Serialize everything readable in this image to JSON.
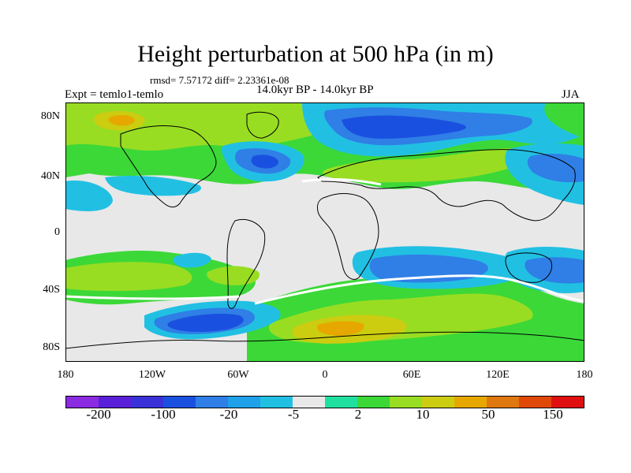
{
  "title": "Height perturbation at 500 hPa (in m)",
  "stats": "rmsd= 7.57172 diff= 2.23361e-08",
  "expt": "Expt = temlo1-temlo",
  "period": "14.0kyr BP - 14.0kyr BP",
  "season": "JJA",
  "y_labels": [
    "80N",
    "40N",
    "0",
    "40S",
    "80S"
  ],
  "x_labels": [
    "180",
    "120W",
    "60W",
    "0",
    "60E",
    "120E",
    "180"
  ],
  "colorbar": {
    "colors": [
      "#8a2be2",
      "#5a1fd8",
      "#3a32d8",
      "#1a50e0",
      "#2f7fe6",
      "#1ea1e8",
      "#21c0e3",
      "#e8e8e8",
      "#20e0a0",
      "#3cd838",
      "#99dd22",
      "#cccc11",
      "#e6a800",
      "#e07810",
      "#e04808",
      "#e01010"
    ],
    "labels": [
      "-200",
      "-100",
      "-20",
      "-5",
      "2",
      "10",
      "50",
      "150"
    ]
  }
}
